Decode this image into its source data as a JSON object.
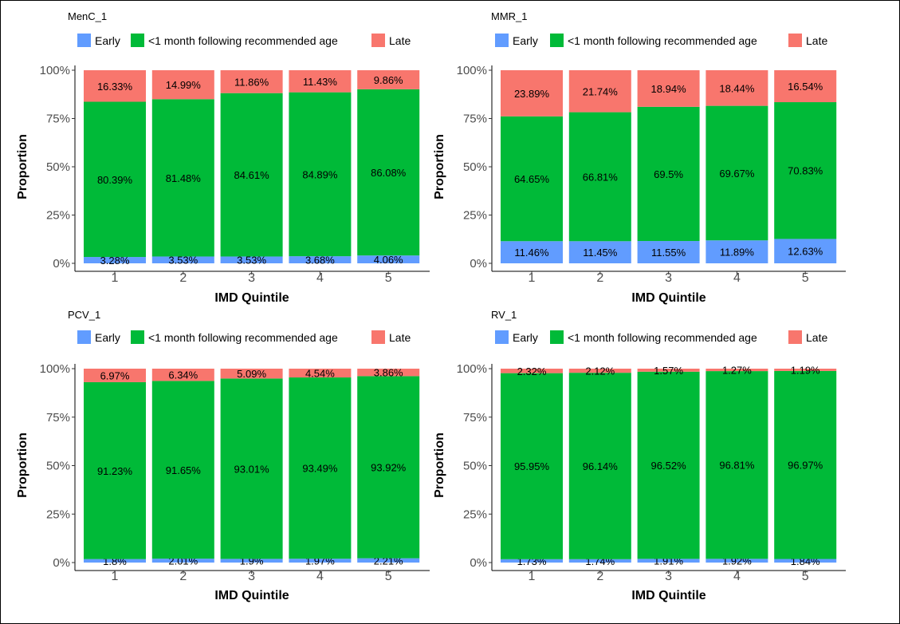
{
  "colors": {
    "early": "#619CFF",
    "ontime": "#00BA38",
    "late": "#F8766D"
  },
  "legend": {
    "early": "Early",
    "ontime": "<1 month following recommended age",
    "late": "Late"
  },
  "chart_data": [
    {
      "type": "bar",
      "stacked": true,
      "title": "MenC_1",
      "xlabel": "IMD Quintile",
      "ylabel": "Proportion",
      "categories": [
        "1",
        "2",
        "3",
        "4",
        "5"
      ],
      "yticks": [
        "0%",
        "25%",
        "50%",
        "75%",
        "100%"
      ],
      "ylim": [
        0,
        100
      ],
      "series": [
        {
          "name": "Early",
          "values": [
            3.28,
            3.53,
            3.53,
            3.68,
            4.06
          ],
          "labels": [
            "3.28%",
            "3.53%",
            "3.53%",
            "3.68%",
            "4.06%"
          ]
        },
        {
          "name": "<1 month following recommended age",
          "values": [
            80.39,
            81.48,
            84.61,
            84.89,
            86.08
          ],
          "labels": [
            "80.39%",
            "81.48%",
            "84.61%",
            "84.89%",
            "86.08%"
          ]
        },
        {
          "name": "Late",
          "values": [
            16.33,
            14.99,
            11.86,
            11.43,
            9.86
          ],
          "labels": [
            "16.33%",
            "14.99%",
            "11.86%",
            "11.43%",
            "9.86%"
          ]
        }
      ]
    },
    {
      "type": "bar",
      "stacked": true,
      "title": "MMR_1",
      "xlabel": "IMD Quintile",
      "ylabel": "Proportion",
      "categories": [
        "1",
        "2",
        "3",
        "4",
        "5"
      ],
      "yticks": [
        "0%",
        "25%",
        "50%",
        "75%",
        "100%"
      ],
      "ylim": [
        0,
        100
      ],
      "series": [
        {
          "name": "Early",
          "values": [
            11.46,
            11.45,
            11.55,
            11.89,
            12.63
          ],
          "labels": [
            "11.46%",
            "11.45%",
            "11.55%",
            "11.89%",
            "12.63%"
          ]
        },
        {
          "name": "<1 month following recommended age",
          "values": [
            64.65,
            66.81,
            69.5,
            69.67,
            70.83
          ],
          "labels": [
            "64.65%",
            "66.81%",
            "69.5%",
            "69.67%",
            "70.83%"
          ]
        },
        {
          "name": "Late",
          "values": [
            23.89,
            21.74,
            18.94,
            18.44,
            16.54
          ],
          "labels": [
            "23.89%",
            "21.74%",
            "18.94%",
            "18.44%",
            "16.54%"
          ]
        }
      ]
    },
    {
      "type": "bar",
      "stacked": true,
      "title": "PCV_1",
      "xlabel": "IMD Quintile",
      "ylabel": "Proportion",
      "categories": [
        "1",
        "2",
        "3",
        "4",
        "5"
      ],
      "yticks": [
        "0%",
        "25%",
        "50%",
        "75%",
        "100%"
      ],
      "ylim": [
        0,
        100
      ],
      "series": [
        {
          "name": "Early",
          "values": [
            1.8,
            2.01,
            1.9,
            1.97,
            2.21
          ],
          "labels": [
            "1.8%",
            "2.01%",
            "1.9%",
            "1.97%",
            "2.21%"
          ]
        },
        {
          "name": "<1 month following recommended age",
          "values": [
            91.23,
            91.65,
            93.01,
            93.49,
            93.92
          ],
          "labels": [
            "91.23%",
            "91.65%",
            "93.01%",
            "93.49%",
            "93.92%"
          ]
        },
        {
          "name": "Late",
          "values": [
            6.97,
            6.34,
            5.09,
            4.54,
            3.86
          ],
          "labels": [
            "6.97%",
            "6.34%",
            "5.09%",
            "4.54%",
            "3.86%"
          ]
        }
      ]
    },
    {
      "type": "bar",
      "stacked": true,
      "title": "RV_1",
      "xlabel": "IMD Quintile",
      "ylabel": "Proportion",
      "categories": [
        "1",
        "2",
        "3",
        "4",
        "5"
      ],
      "yticks": [
        "0%",
        "25%",
        "50%",
        "75%",
        "100%"
      ],
      "ylim": [
        0,
        100
      ],
      "series": [
        {
          "name": "Early",
          "values": [
            1.73,
            1.74,
            1.91,
            1.92,
            1.84
          ],
          "labels": [
            "1.73%",
            "1.74%",
            "1.91%",
            "1.92%",
            "1.84%"
          ]
        },
        {
          "name": "<1 month following recommended age",
          "values": [
            95.95,
            96.14,
            96.52,
            96.81,
            96.97
          ],
          "labels": [
            "95.95%",
            "96.14%",
            "96.52%",
            "96.81%",
            "96.97%"
          ]
        },
        {
          "name": "Late",
          "values": [
            2.32,
            2.12,
            1.57,
            1.27,
            1.19
          ],
          "labels": [
            "2.32%",
            "2.12%",
            "1.57%",
            "1.27%",
            "1.19%"
          ]
        }
      ]
    }
  ]
}
